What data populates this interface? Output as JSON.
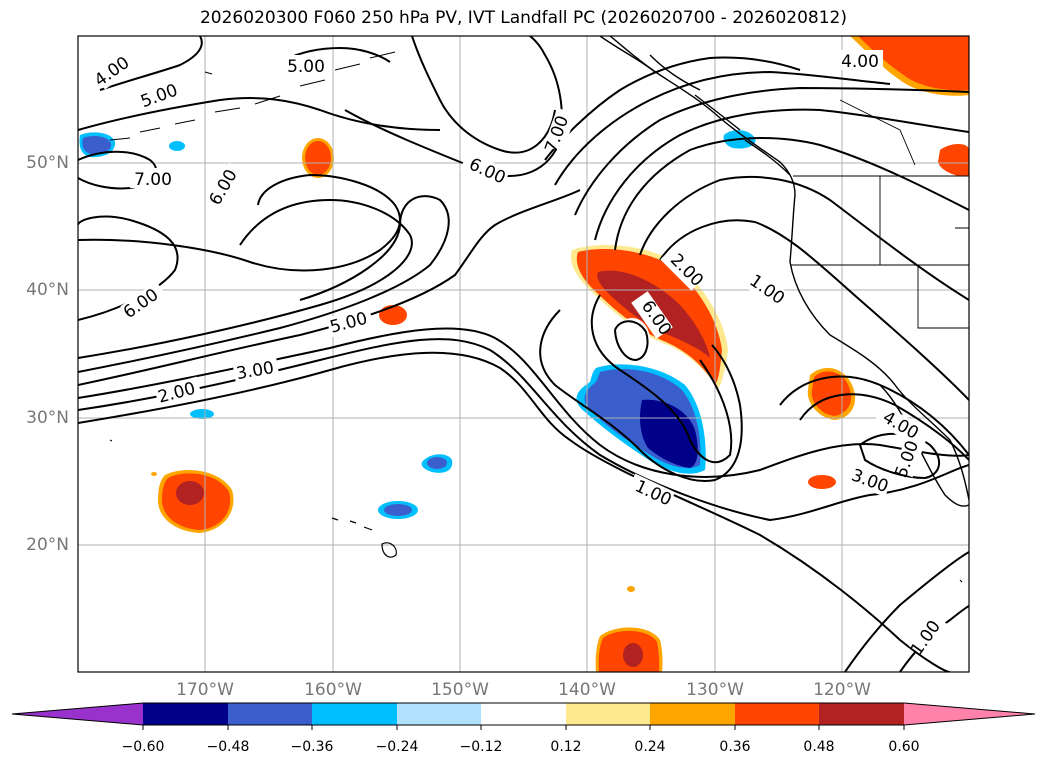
{
  "title": "2026020300 F060 250 hPa PV, IVT Landfall PC (2026020700 - 2026020812)",
  "lat_labels": [
    "50°N",
    "40°N",
    "30°N",
    "20°N"
  ],
  "lon_labels": [
    "170°W",
    "160°W",
    "150°W",
    "140°W",
    "130°W",
    "120°W"
  ],
  "colorbar": {
    "tick_labels": [
      "−0.60",
      "−0.48",
      "−0.36",
      "−0.24",
      "−0.12",
      "0.12",
      "0.24",
      "0.36",
      "0.48",
      "0.60"
    ],
    "colors": [
      "#9932cc",
      "#00008b",
      "#3a5fcd",
      "#00bfff",
      "#b0e2ff",
      "#ffffff",
      "#ffe98f",
      "#ffa500",
      "#ff4500",
      "#b22222",
      "#ff82ab"
    ]
  },
  "contour_labels": [
    "4.00",
    "5.00",
    "5.00",
    "7.00",
    "6.00",
    "6.00",
    "7.00",
    "6.00",
    "5.00",
    "3.00",
    "2.00",
    "2.00",
    "6.00",
    "1.00",
    "4.00",
    "5.00",
    "3.00",
    "1.00",
    "1.00",
    "4.00"
  ],
  "colors": {
    "land": "#000000",
    "grid": "#b0b0b0",
    "tick_text": "#777777"
  }
}
